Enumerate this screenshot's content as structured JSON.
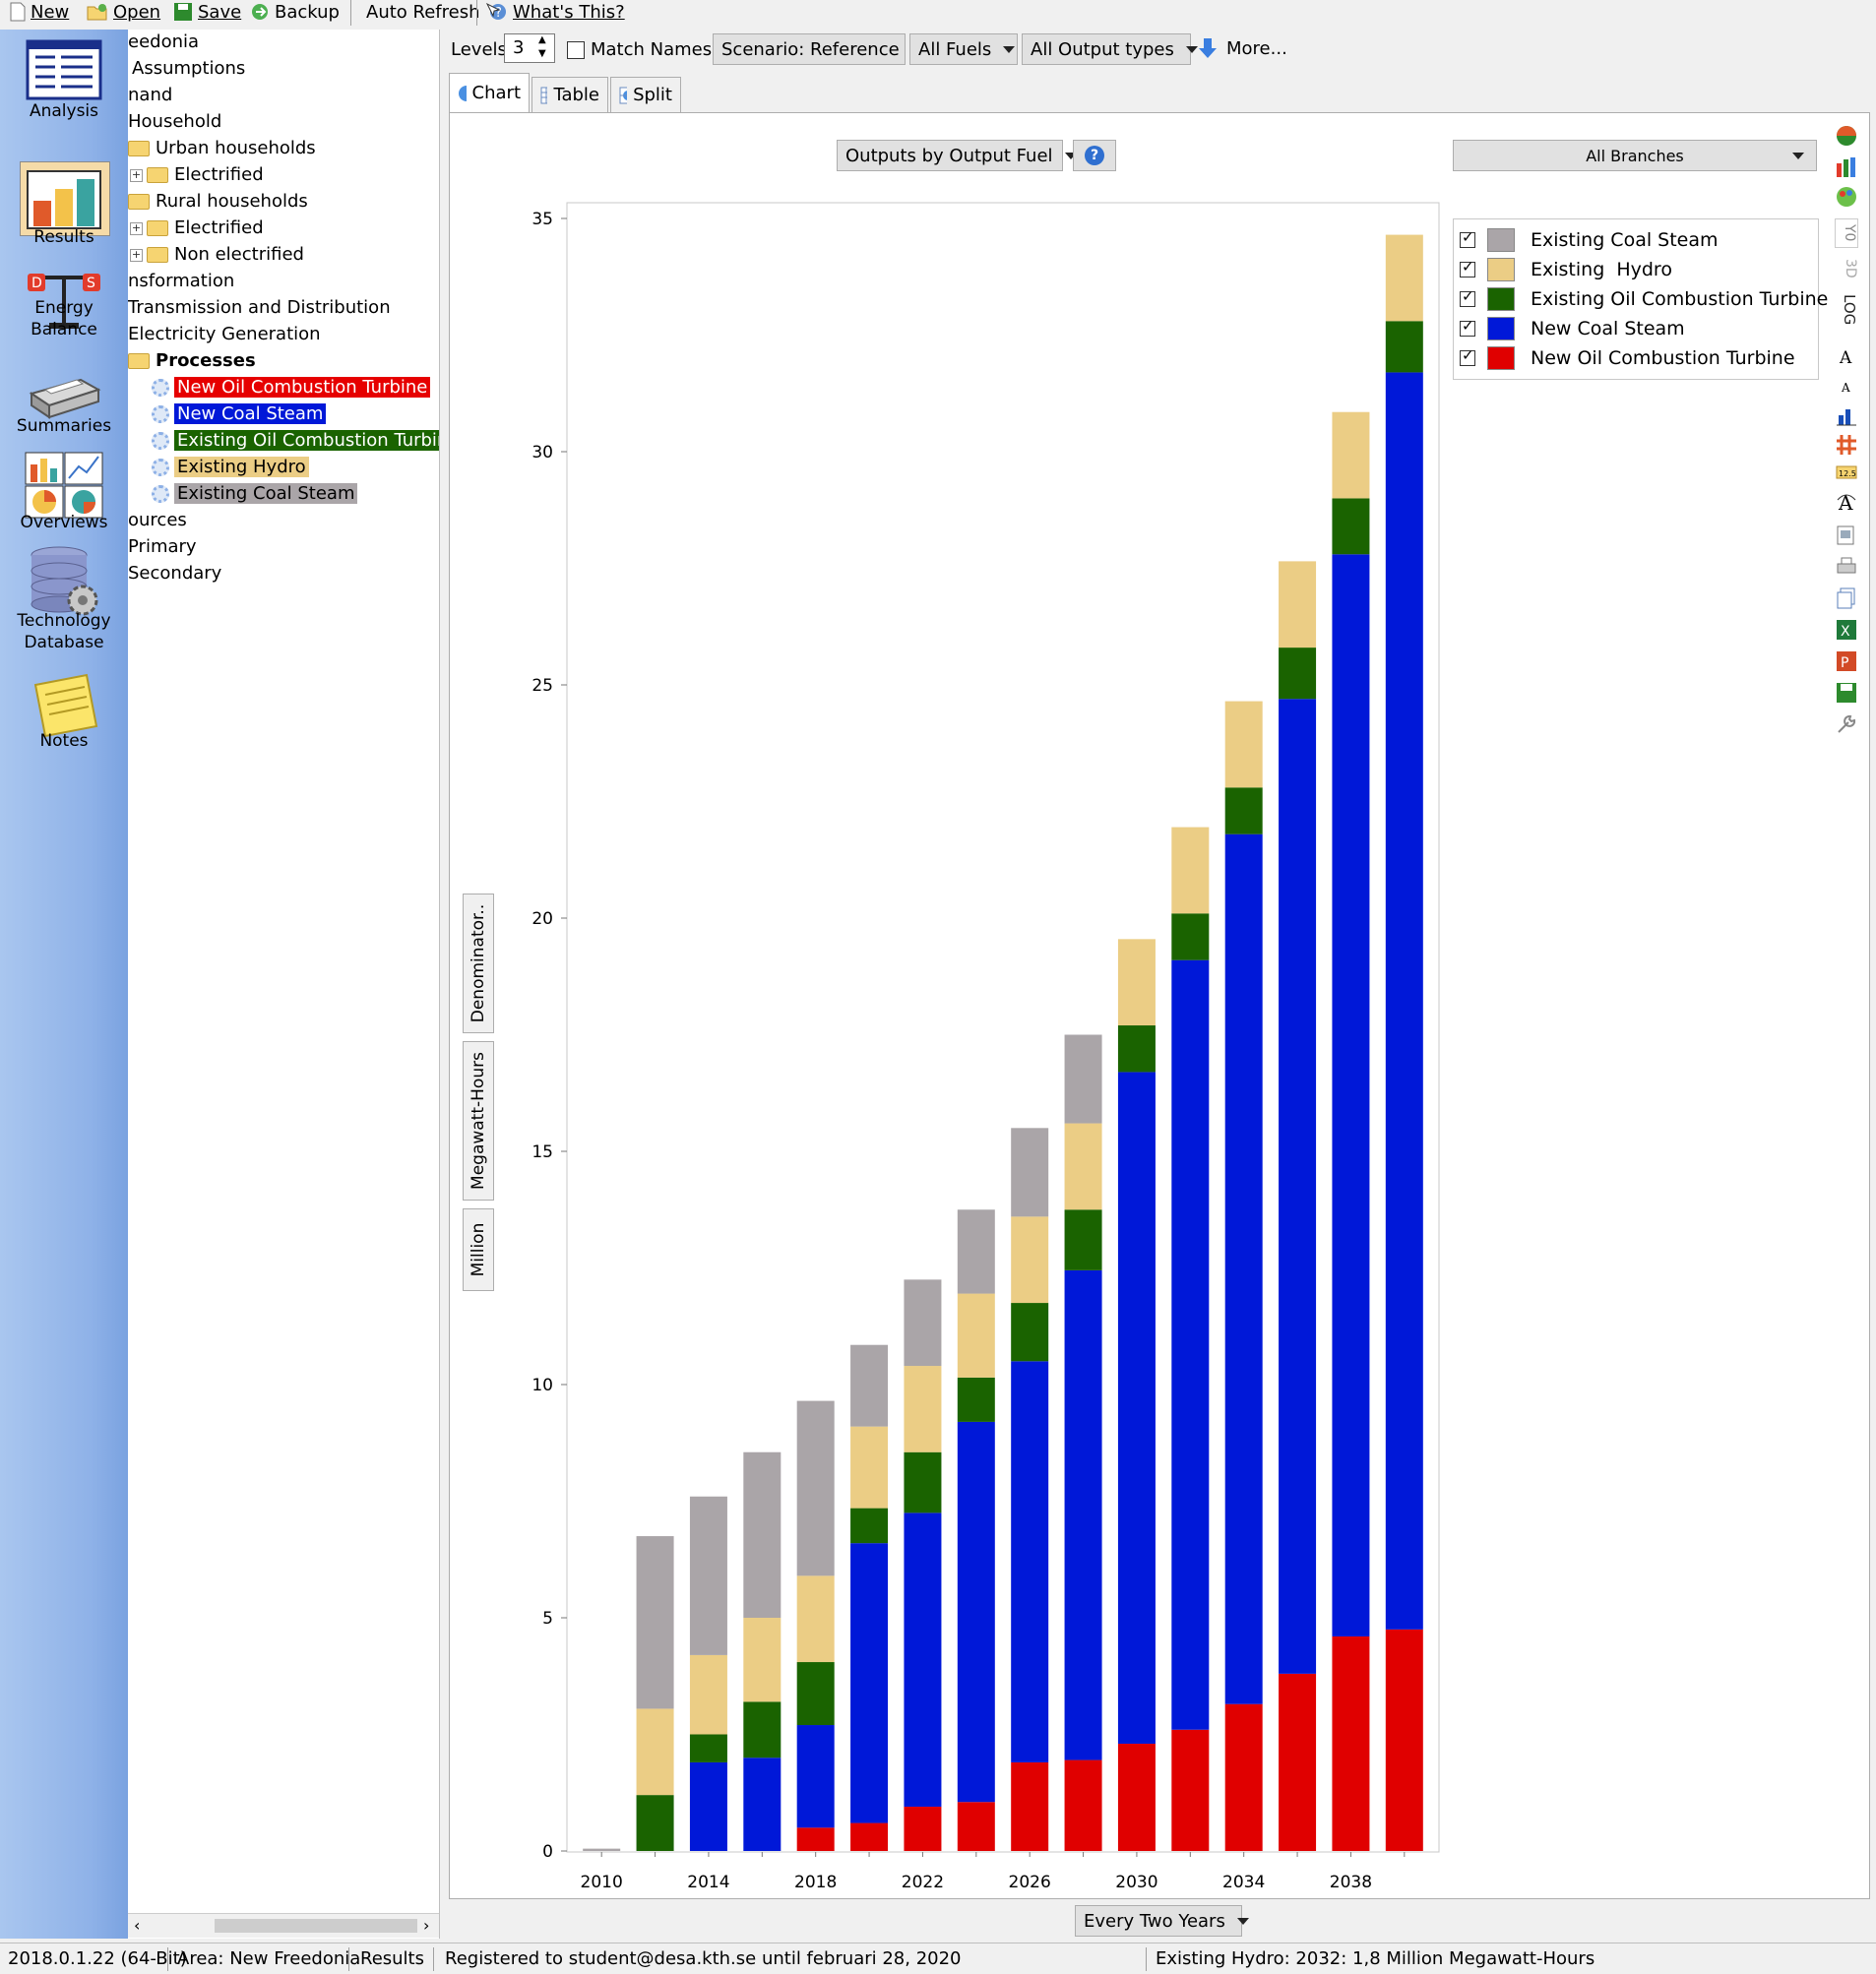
{
  "toolbar": {
    "new": "New",
    "open": "Open",
    "save": "Save",
    "backup": "Backup",
    "auto_refresh": "Auto Refresh",
    "whats_this": "What's This?"
  },
  "nav": {
    "analysis": "Analysis",
    "results": "Results",
    "energy_balance_1": "Energy",
    "energy_balance_2": "Balance",
    "summaries": "Summaries",
    "overviews": "Overviews",
    "techdb_1": "Technology",
    "techdb_2": "Database",
    "notes": "Notes"
  },
  "tree": {
    "rows": [
      {
        "label": "eedonia"
      },
      {
        "label": "Assumptions"
      },
      {
        "label": "nand"
      },
      {
        "label": "Household"
      },
      {
        "label": "Urban households"
      },
      {
        "label": "Electrified"
      },
      {
        "label": "Rural households"
      },
      {
        "label": "Electrified"
      },
      {
        "label": "Non electrified"
      },
      {
        "label": "nsformation"
      },
      {
        "label": "Transmission and Distribution"
      },
      {
        "label": "Electricity Generation"
      },
      {
        "label": "Processes"
      },
      {
        "label": "New Oil Combustion Turbine"
      },
      {
        "label": "New Coal Steam"
      },
      {
        "label": "Existing Oil Combustion Turbine"
      },
      {
        "label": "Existing Hydro"
      },
      {
        "label": "Existing Coal Steam"
      },
      {
        "label": "ources"
      },
      {
        "label": "Primary"
      },
      {
        "label": "Secondary"
      }
    ]
  },
  "controls": {
    "levels_label": "Levels:",
    "levels_value": "3",
    "match_names": "Match Names",
    "scenario": "Scenario: Reference",
    "fuels": "All Fuels",
    "output_types": "All Output types",
    "more": "More..."
  },
  "tabs": {
    "chart": "Chart",
    "table": "Table",
    "split": "Split"
  },
  "chart_controls": {
    "outputs_by": "Outputs by Output Fuel",
    "help": "?",
    "branches": "All Branches",
    "interval": "Every Two Years"
  },
  "vtabs": {
    "denominator": "Denominator..",
    "unit": "Megawatt-Hours",
    "scale": "Million"
  },
  "right_toolbar": {
    "yo": "Y0",
    "threed": "3D",
    "log": "LOG"
  },
  "chart_data": {
    "type": "bar",
    "stacked": true,
    "categories": [
      2010,
      2012,
      2014,
      2016,
      2018,
      2020,
      2022,
      2024,
      2026,
      2028,
      2030,
      2032,
      2034,
      2036,
      2038,
      2040
    ],
    "x_tick_labels": [
      "2010",
      "2014",
      "2018",
      "2022",
      "2026",
      "2030",
      "2034",
      "2038"
    ],
    "ylim": [
      0,
      35
    ],
    "y_ticks": [
      0,
      5,
      10,
      15,
      20,
      25,
      30,
      35
    ],
    "series": [
      {
        "name": "New Oil Combustion Turbine",
        "color": "#e00000",
        "values": [
          0,
          0,
          0,
          0,
          0.5,
          0.6,
          0.95,
          1.05,
          1.9,
          1.95,
          2.3,
          2.6,
          3.15,
          3.8,
          4.6,
          4.75
        ]
      },
      {
        "name": "New Coal Steam",
        "color": "#0018d8",
        "values": [
          0,
          0,
          1.9,
          2.0,
          2.2,
          6.0,
          6.3,
          8.15,
          8.6,
          10.5,
          14.4,
          16.5,
          18.65,
          20.9,
          23.2,
          26.95
        ]
      },
      {
        "name": "Existing Oil Combustion Turbine",
        "color": "#1a6300",
        "values": [
          0,
          1.2,
          0.6,
          1.2,
          1.35,
          0.75,
          1.3,
          0.95,
          1.25,
          1.3,
          1.0,
          1.0,
          1.0,
          1.1,
          1.2,
          1.1
        ]
      },
      {
        "name": "Existing Hydro",
        "color": "#ebcd85",
        "values": [
          0,
          1.85,
          1.7,
          1.8,
          1.85,
          1.75,
          1.85,
          1.8,
          1.85,
          1.85,
          1.85,
          1.85,
          1.85,
          1.85,
          1.85,
          1.85
        ]
      },
      {
        "name": "Existing Coal Steam",
        "color": "#aaa5a8",
        "values": [
          0.05,
          3.7,
          3.4,
          3.55,
          3.75,
          1.75,
          1.85,
          1.8,
          1.9,
          1.9,
          0,
          0,
          0,
          0,
          0,
          0
        ]
      }
    ],
    "legend_order": [
      "Existing Coal Steam",
      "Existing  Hydro",
      "Existing Oil Combustion Turbine",
      "New Coal Steam",
      "New Oil Combustion Turbine"
    ],
    "legend_colors": [
      "#aaa5a8",
      "#ebcd85",
      "#1a6300",
      "#0018d8",
      "#e00000"
    ],
    "legend_placement": "top-right",
    "grid": false
  },
  "status": {
    "version": "2018.0.1.22 (64-Bit)",
    "area": "Area: New Freedonia",
    "view": "Results",
    "registered": "Registered to student@desa.kth.se until februari 28, 2020",
    "hover": "Existing Hydro: 2032: 1,8 Million Megawatt-Hours"
  }
}
